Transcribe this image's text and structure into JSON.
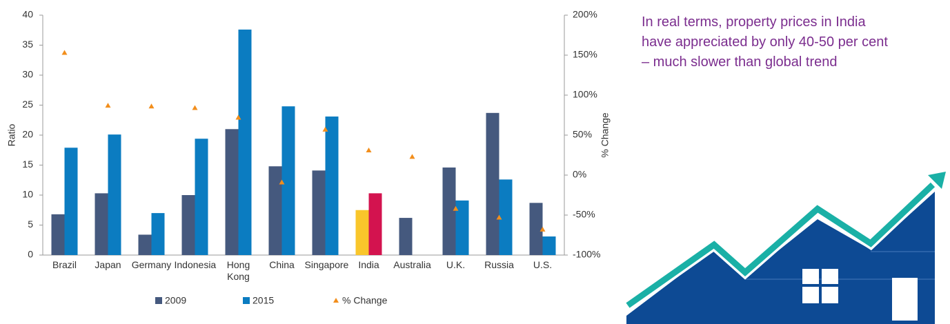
{
  "chart_data": {
    "type": "bar",
    "categories": [
      "Brazil",
      "Japan",
      "Germany",
      "Indonesia",
      "Hong Kong",
      "China",
      "Singapore",
      "India",
      "Australia",
      "U.K.",
      "Russia",
      "U.S."
    ],
    "series": [
      {
        "name": "2009",
        "color": "#45597e",
        "colors": [
          "#45597e",
          "#45597e",
          "#45597e",
          "#45597e",
          "#45597e",
          "#45597e",
          "#45597e",
          "#f9c62b",
          "#45597e",
          "#45597e",
          "#45597e",
          "#45597e"
        ],
        "values": [
          6.8,
          10.3,
          3.4,
          10.0,
          21.0,
          14.8,
          14.1,
          7.5,
          6.2,
          14.6,
          23.7,
          8.7
        ]
      },
      {
        "name": "2015",
        "color": "#0b7cc1",
        "colors": [
          "#0b7cc1",
          "#0b7cc1",
          "#0b7cc1",
          "#0b7cc1",
          "#0b7cc1",
          "#0b7cc1",
          "#0b7cc1",
          "#d3134f",
          "#0b7cc1",
          "#0b7cc1",
          "#0b7cc1",
          "#0b7cc1"
        ],
        "values": [
          17.9,
          20.1,
          7.0,
          19.4,
          37.6,
          24.8,
          23.1,
          10.3,
          null,
          9.1,
          12.6,
          3.1
        ]
      },
      {
        "name": "% Change",
        "color": "#f28e1c",
        "marker": "triangle",
        "axis": "y2",
        "values": [
          153,
          87,
          86,
          84,
          72,
          -9,
          57,
          31,
          23,
          -42,
          -53,
          -68
        ]
      }
    ],
    "y_label": "Ratio",
    "y2_label": "% Change",
    "ylim": [
      0,
      40
    ],
    "yticks": [
      0,
      5,
      10,
      15,
      20,
      25,
      30,
      35,
      40
    ],
    "y2lim": [
      -100,
      200
    ],
    "y2ticks": [
      {
        "value": -100,
        "label": "-100%"
      },
      {
        "value": -50,
        "label": "-50%"
      },
      {
        "value": 0,
        "label": "0%"
      },
      {
        "value": 50,
        "label": "50%"
      },
      {
        "value": 100,
        "label": "100%"
      },
      {
        "value": 150,
        "label": "150%"
      },
      {
        "value": 200,
        "label": "200%"
      }
    ],
    "grid": false,
    "legend": "bottom",
    "annotation": [
      "In real terms, property prices in India",
      "have appreciated by only 40-50 per cent",
      "– much slower than global trend"
    ]
  }
}
